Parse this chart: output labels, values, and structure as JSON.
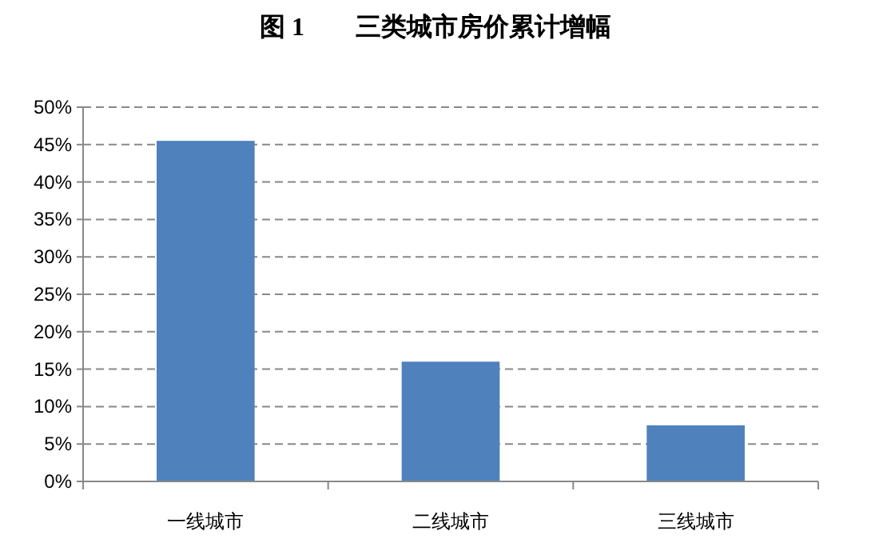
{
  "chart_data": {
    "type": "bar",
    "title": "图 1　　三类城市房价累计增幅",
    "categories": [
      "一线城市",
      "二线城市",
      "三线城市"
    ],
    "values": [
      45.5,
      16.0,
      7.5
    ],
    "color": "#4f81bd",
    "ylim": [
      0,
      50
    ],
    "yticks": [
      {
        "value": 0,
        "label": "0%"
      },
      {
        "value": 5,
        "label": "5%"
      },
      {
        "value": 10,
        "label": "10%"
      },
      {
        "value": 15,
        "label": "15%"
      },
      {
        "value": 20,
        "label": "20%"
      },
      {
        "value": 25,
        "label": "25%"
      },
      {
        "value": 30,
        "label": "30%"
      },
      {
        "value": 35,
        "label": "35%"
      },
      {
        "value": 40,
        "label": "40%"
      },
      {
        "value": 45,
        "label": "45%"
      },
      {
        "value": 50,
        "label": "50%"
      }
    ],
    "grid": "y"
  }
}
